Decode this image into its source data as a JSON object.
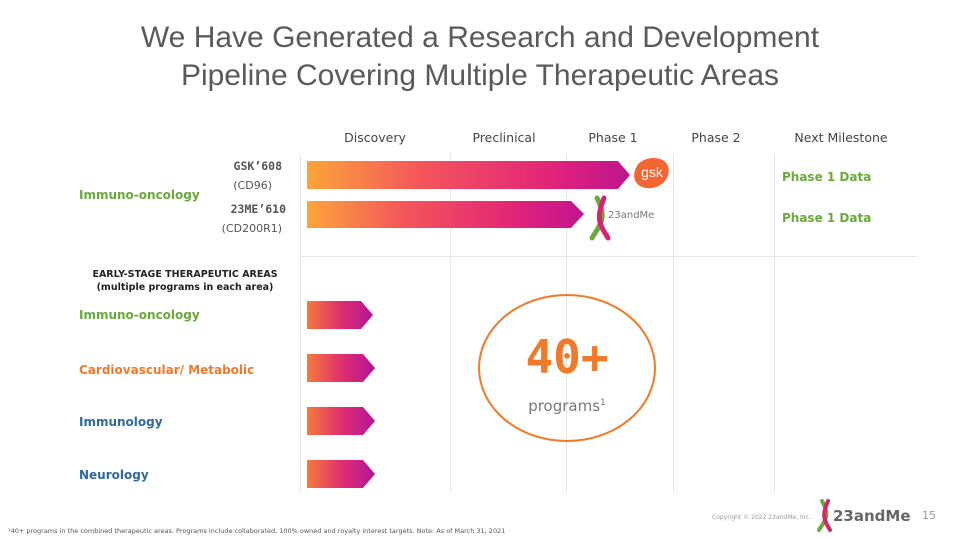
{
  "title": {
    "line1": "We Have Generated a Research and Development",
    "line2": "Pipeline Covering Multiple Therapeutic Areas"
  },
  "phases": [
    "Discovery",
    "Preclinical",
    "Phase 1",
    "Phase 2",
    "Next Milestone"
  ],
  "immuno_oncology_label": "Immuno-oncology",
  "programs": [
    {
      "name": "GSK’608",
      "target": "(CD96)",
      "partner": "gsk",
      "progress": "Phase 1",
      "milestone": "Phase 1 Data"
    },
    {
      "name": "23ME’610",
      "target": "(CD200R1)",
      "partner": "23andMe",
      "progress": "Phase 1",
      "milestone": "Phase 1 Data"
    }
  ],
  "early_stage": {
    "heading_line1": "EARLY-STAGE THERAPEUTIC AREAS",
    "heading_line2": "(multiple programs in each area)",
    "areas": [
      {
        "label": "Immuno-oncology",
        "color": "#6aaa3a"
      },
      {
        "label": "Cardiovascular/ Metabolic",
        "color": "#f07a2a"
      },
      {
        "label": "Immunology",
        "color": "#2f6a9e"
      },
      {
        "label": "Neurology",
        "color": "#2f6a9e"
      }
    ]
  },
  "highlight": {
    "value": "40+",
    "label": "programs",
    "footnote_ref": "1"
  },
  "footnote": "¹40+ programs in the combined therapeutic areas. Programs include collaborated, 100% owned and royalty interest targets. Note: As of March 31, 2021",
  "copyright": "Copyright © 2022 23andMe, Inc.",
  "brand": "23andMe",
  "page_number": "15",
  "colors": {
    "accent_orange": "#f07a2a",
    "green": "#6aaa3a",
    "blue": "#2f6a9e",
    "magenta": "#c2188e"
  }
}
